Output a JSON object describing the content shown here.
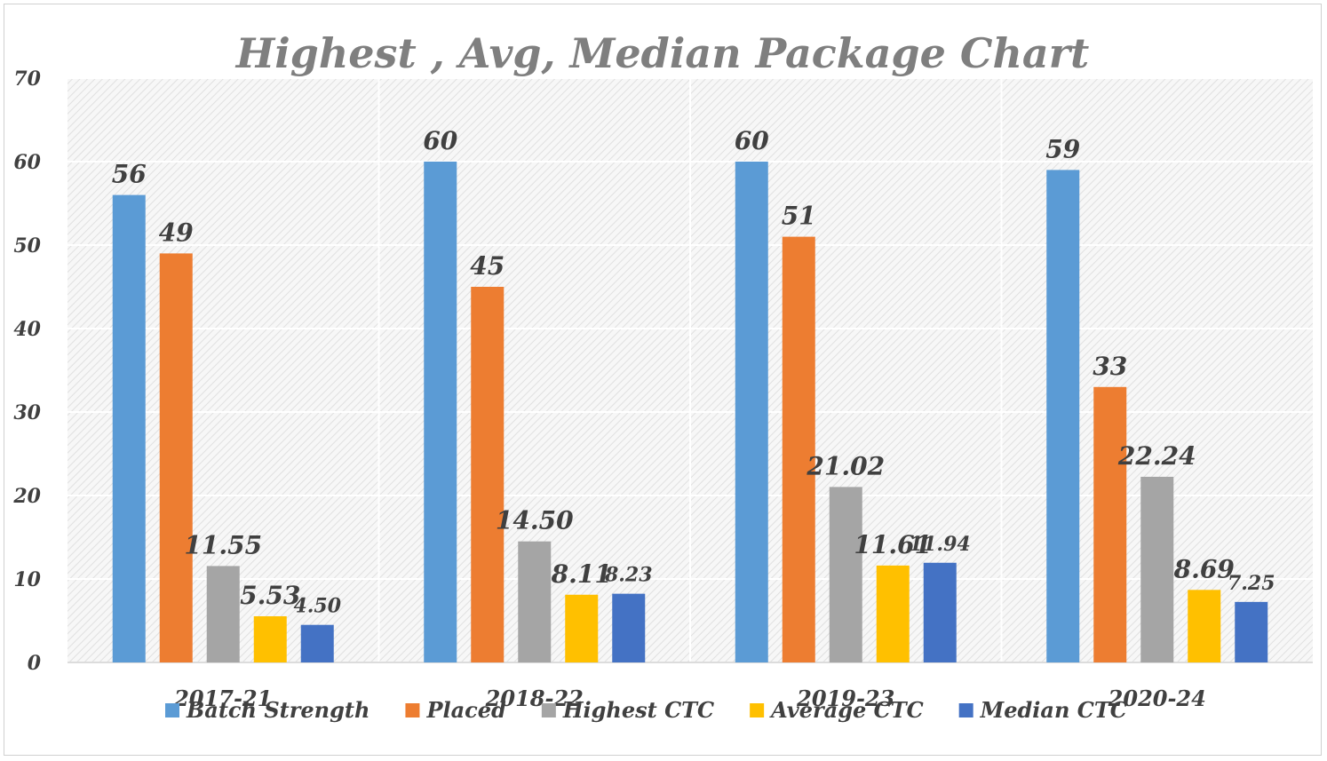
{
  "chart_data": {
    "type": "bar",
    "title": "Highest , Avg, Median Package Chart",
    "categories": [
      "2017-21",
      "2018-22",
      "2019-23",
      "2020-24"
    ],
    "series": [
      {
        "name": "Batch Strength",
        "color": "#5b9bd5",
        "values": [
          56,
          60,
          60,
          59
        ],
        "labels": [
          "56",
          "60",
          "60",
          "59"
        ]
      },
      {
        "name": "Placed",
        "color": "#ed7d31",
        "values": [
          49,
          45,
          51,
          33
        ],
        "labels": [
          "49",
          "45",
          "51",
          "33"
        ]
      },
      {
        "name": "Highest CTC",
        "color": "#a5a5a5",
        "values": [
          11.55,
          14.5,
          21.02,
          22.24
        ],
        "labels": [
          "11.55",
          "14.50",
          "21.02",
          "22.24"
        ]
      },
      {
        "name": "Average CTC",
        "color": "#ffc000",
        "values": [
          5.53,
          8.11,
          11.61,
          8.69
        ],
        "labels": [
          "5.53",
          "8.11",
          "11.61",
          "8.69"
        ]
      },
      {
        "name": "Median CTC",
        "color": "#4472c4",
        "values": [
          4.5,
          8.23,
          11.94,
          7.25
        ],
        "labels": [
          "4.50",
          "8.23",
          "11.94",
          "7.25"
        ]
      }
    ],
    "ylim": [
      0,
      70
    ],
    "yticks": [
      "0",
      "10",
      "20",
      "30",
      "40",
      "50",
      "60",
      "70"
    ],
    "xlabel": "",
    "ylabel": "",
    "grid": true,
    "legend_position": "bottom"
  }
}
